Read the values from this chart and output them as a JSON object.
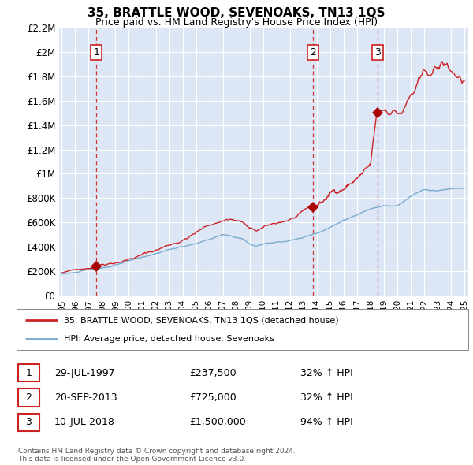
{
  "title": "35, BRATTLE WOOD, SEVENOAKS, TN13 1QS",
  "subtitle": "Price paid vs. HM Land Registry's House Price Index (HPI)",
  "background_color": "#dce6f5",
  "plot_bg_color": "#dce6f5",
  "legend_line1": "35, BRATTLE WOOD, SEVENOAKS, TN13 1QS (detached house)",
  "legend_line2": "HPI: Average price, detached house, Sevenoaks",
  "footer1": "Contains HM Land Registry data © Crown copyright and database right 2024.",
  "footer2": "This data is licensed under the Open Government Licence v3.0.",
  "transactions": [
    {
      "label": "1",
      "date": "29-JUL-1997",
      "price": 237500,
      "price_str": "£237,500",
      "pct": "32%",
      "dir": "↑",
      "year": 1997.57
    },
    {
      "label": "2",
      "date": "20-SEP-2013",
      "price": 725000,
      "price_str": "£725,000",
      "pct": "32%",
      "dir": "↑",
      "year": 2013.72
    },
    {
      "label": "3",
      "date": "10-JUL-2018",
      "price": 1500000,
      "price_str": "£1,500,000",
      "pct": "94%",
      "dir": "↑",
      "year": 2018.53
    }
  ],
  "red_line_color": "#cc2222",
  "blue_line_color": "#7aabcf",
  "marker_color": "#aa0000",
  "dashed_line_color": "#cc2222",
  "grid_color": "#ffffff",
  "ylim": [
    0,
    2200000
  ],
  "yticks": [
    0,
    200000,
    400000,
    600000,
    800000,
    1000000,
    1200000,
    1400000,
    1600000,
    1800000,
    2000000,
    2200000
  ],
  "ytick_labels": [
    "£0",
    "£200K",
    "£400K",
    "£600K",
    "£800K",
    "£1M",
    "£1.2M",
    "£1.4M",
    "£1.6M",
    "£1.8M",
    "£2M",
    "£2.2M"
  ],
  "xlim_start": 1994.8,
  "xlim_end": 2025.3,
  "xtick_years": [
    1995,
    1996,
    1997,
    1998,
    1999,
    2000,
    2001,
    2002,
    2003,
    2004,
    2005,
    2006,
    2007,
    2008,
    2009,
    2010,
    2011,
    2012,
    2013,
    2014,
    2015,
    2016,
    2017,
    2018,
    2019,
    2020,
    2021,
    2022,
    2023,
    2024,
    2025
  ]
}
